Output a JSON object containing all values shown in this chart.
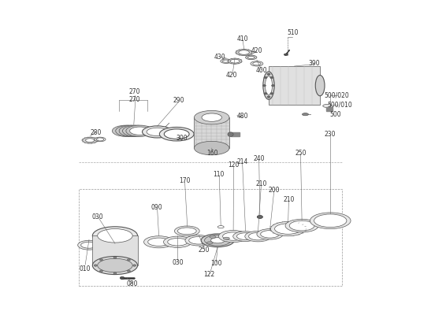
{
  "bg_color": "#ffffff",
  "line_color": "#555555",
  "dark_color": "#333333",
  "light_color": "#aaaaaa",
  "figsize": [
    5.66,
    4.0
  ],
  "dpi": 100
}
